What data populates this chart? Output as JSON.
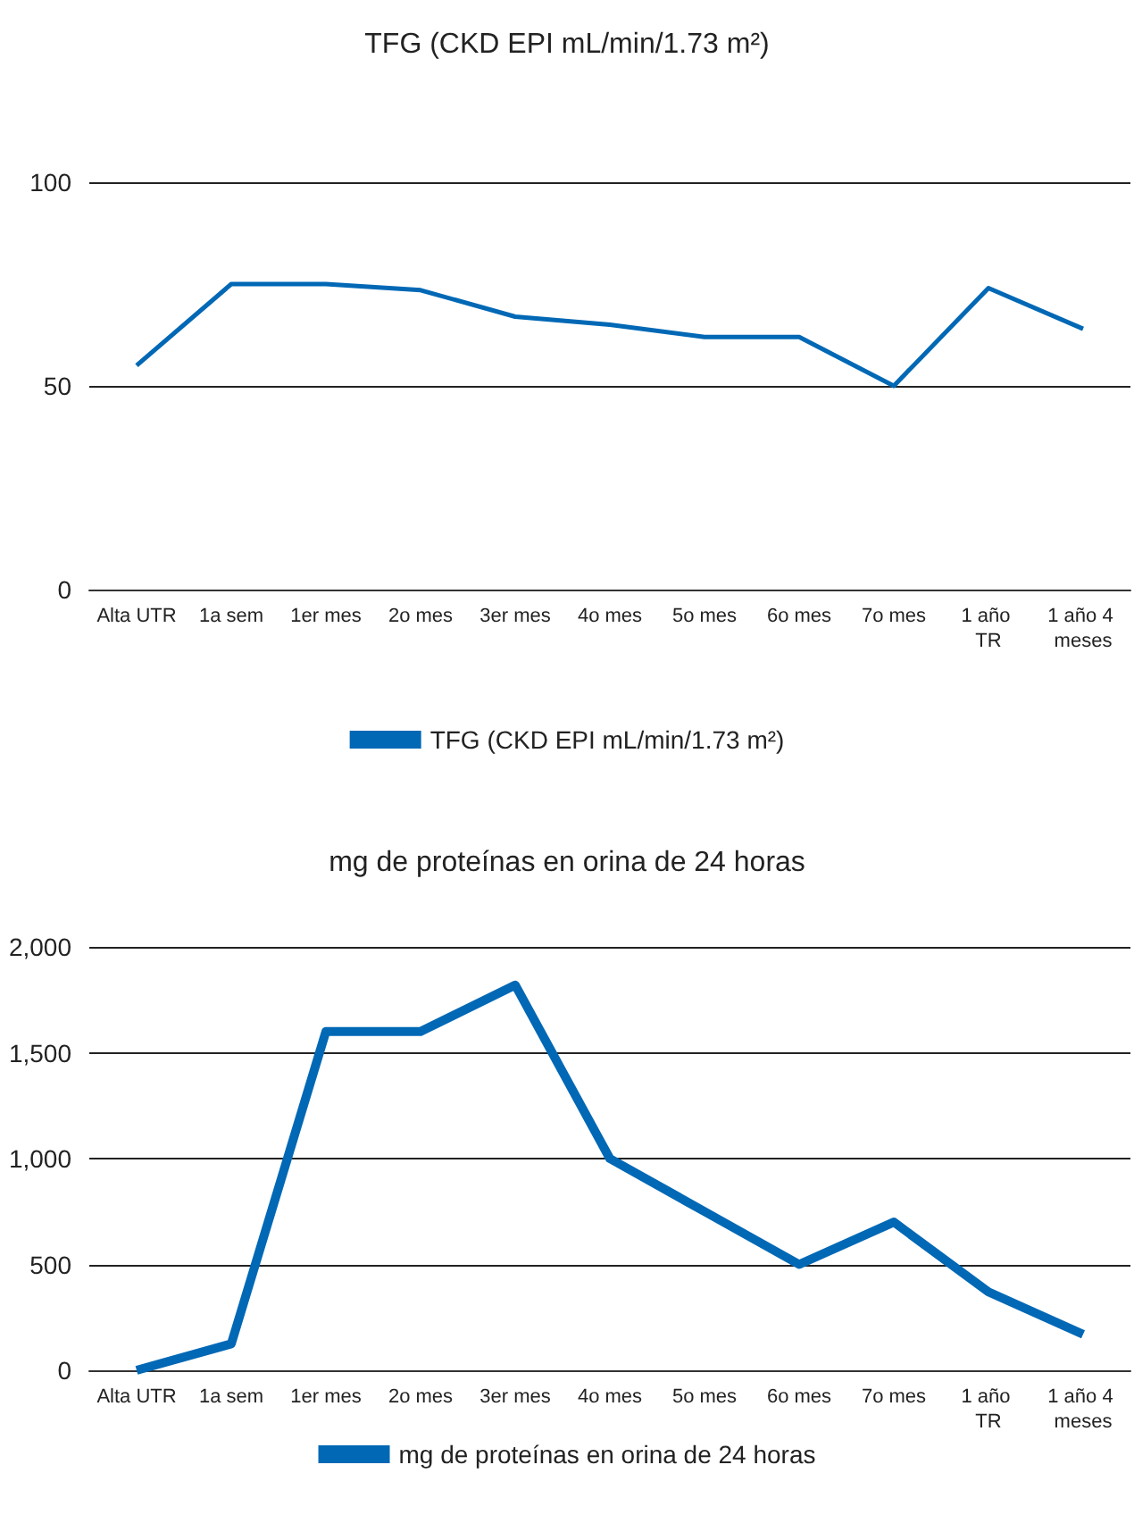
{
  "chart_data": [
    {
      "type": "line",
      "title": "TFG (CKD EPI mL/min/1.73 m²)",
      "categories": [
        "Alta UTR",
        "1a sem",
        "1er mes",
        "2o mes",
        "3er mes",
        "4o mes",
        "5o mes",
        "6o mes",
        "7o mes",
        "1 año TR",
        "1 año 4 meses"
      ],
      "series": [
        {
          "name": "TFG (CKD EPI mL/min/1.73 m²)",
          "color": "#0068b5",
          "values": [
            55,
            75,
            75,
            73.5,
            67,
            65,
            62,
            62,
            50,
            74,
            64
          ]
        }
      ],
      "ylim": [
        0,
        100
      ],
      "yticks": [
        0,
        50,
        100
      ],
      "grid": "y",
      "legend": "bottom",
      "marker": "none",
      "line_style": "solid"
    },
    {
      "type": "line",
      "title": "mg de proteínas en orina de 24 horas",
      "categories": [
        "Alta UTR",
        "1a sem",
        "1er mes",
        "2o mes",
        "3er mes",
        "4o mes",
        "5o mes",
        "6o mes",
        "7o mes",
        "1 año TR",
        "1 año 4 meses"
      ],
      "series": [
        {
          "name": "mg de proteínas en orina de 24 horas",
          "color": "#0068b5",
          "values": [
            0,
            125,
            1600,
            1600,
            1820,
            1000,
            750,
            500,
            700,
            370,
            170
          ]
        }
      ],
      "ylim": [
        0,
        2000
      ],
      "yticks": [
        0,
        {
          "value": 500,
          "label": "500"
        },
        {
          "value": 1000,
          "label": "1,000"
        },
        {
          "value": 1500,
          "label": "1,500"
        },
        {
          "value": 2000,
          "label": "2,000"
        }
      ],
      "grid": "y",
      "legend": "bottom",
      "marker": "none",
      "line_style": "solid"
    }
  ]
}
